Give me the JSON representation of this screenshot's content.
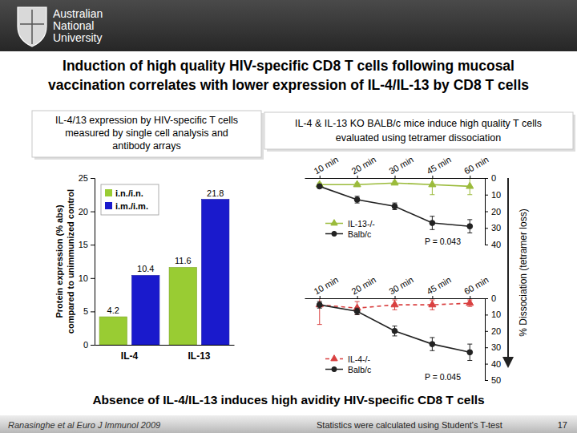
{
  "slide": {
    "logo": [
      "Australian",
      "National",
      "University"
    ],
    "title": [
      "Induction of high quality HIV-specific CD8 T cells following mucosal",
      "vaccination correlates with lower expression of IL-4/IL-13 by CD8 T cells"
    ],
    "y_label": "% Dissociation (tetramer loss)",
    "caption": "Absence of IL-4/IL-13 induces high avidity HIV-specific CD8 T cells",
    "citation": "Ranasinghe et al Euro J Immunol 2009",
    "statistics_note": "Statistics were calculated using Student's T-test",
    "page_number": 17
  },
  "chart_data": [
    {
      "type": "bar",
      "title": [
        "IL-4/13 expression by HIV-specific T cells",
        "measured by single cell analysis and",
        "antibody arrays"
      ],
      "ylabel": [
        "Protein expression (% abs)",
        "compared to unimmunized control"
      ],
      "categories": [
        "IL-4",
        "IL-13"
      ],
      "series": [
        {
          "name": "i.n./i.n.",
          "color": "#99cc33",
          "values": [
            4.2,
            11.6
          ]
        },
        {
          "name": "i.m./i.m.",
          "color": "#1a1acc",
          "values": [
            10.4,
            21.8
          ]
        }
      ],
      "ylim": [
        0,
        25
      ],
      "yticks": [
        0,
        5,
        10,
        15,
        20,
        25
      ],
      "legend": "top-left",
      "data_labels": true,
      "grid": false
    },
    {
      "type": "line",
      "title": [
        "IL-4 & IL-13 KO BALB/c mice induce high quality T cells",
        "evaluated using tetramer dissociation"
      ],
      "annotation": "P = 0.043",
      "categories": [
        "10 min",
        "20 min",
        "30 min",
        "45 min",
        "60 min"
      ],
      "series": [
        {
          "name": "IL-13-/-",
          "color": "#9bbb3b",
          "marker": "triangle",
          "line_style": "solid",
          "values": [
            4,
            4,
            3,
            4,
            5
          ],
          "errors": [
            1,
            1,
            1,
            6,
            5
          ]
        },
        {
          "name": "Balb/c",
          "color": "#222222",
          "marker": "circle",
          "line_style": "solid",
          "values": [
            5,
            13,
            17,
            27,
            29
          ],
          "errors": [
            1,
            2,
            2,
            4,
            4
          ]
        }
      ],
      "ylim": [
        0,
        40
      ],
      "yticks": [
        0,
        10,
        20,
        30,
        40
      ],
      "legend": "bottom-left",
      "grid": false
    },
    {
      "type": "line",
      "annotation": "P = 0.045",
      "categories": [
        "10 min",
        "20 min",
        "30 min",
        "45 min",
        "60 min"
      ],
      "series": [
        {
          "name": "IL-4-/-",
          "color": "#d94040",
          "marker": "triangle",
          "line_style": "dashed",
          "values": [
            4,
            6,
            4,
            4,
            3
          ],
          "errors": [
            12,
            4,
            3,
            3,
            2
          ]
        },
        {
          "name": "Balb/c",
          "color": "#222222",
          "marker": "circle",
          "line_style": "solid",
          "values": [
            4,
            8,
            20,
            28,
            33
          ],
          "errors": [
            2,
            2,
            3,
            4,
            5
          ]
        }
      ],
      "ylim": [
        0,
        50
      ],
      "yticks": [
        0,
        10,
        20,
        30,
        40,
        50
      ],
      "legend": "bottom-left",
      "grid": false
    }
  ]
}
